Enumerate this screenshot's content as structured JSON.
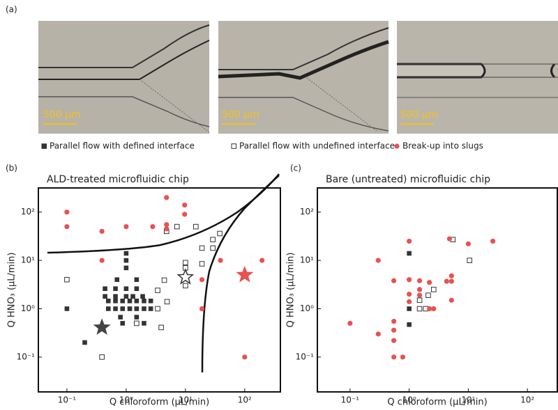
{
  "figure": {
    "panel_labels": [
      "(a)",
      "(b)",
      "(c)"
    ],
    "scale_bars": [
      "500 μm",
      "500 μm",
      "500 μm"
    ]
  },
  "chart_data": [
    {
      "type": "scatter",
      "title": "ALD-treated microfluidic chip",
      "x_label": "Q chloroform (μL/min)",
      "y_label": "Q HNO₃ (μL/min)",
      "xscale": "log",
      "yscale": "log",
      "xlim": [
        0.033,
        400
      ],
      "ylim": [
        0.019,
        316
      ],
      "xticks": [
        {
          "value": 0.1,
          "label": "10⁻¹"
        },
        {
          "value": 1,
          "label": "10⁰"
        },
        {
          "value": 10,
          "label": "10¹"
        },
        {
          "value": 100,
          "label": "10²"
        }
      ],
      "yticks": [
        {
          "value": 0.1,
          "label": "10⁻¹"
        },
        {
          "value": 1,
          "label": "10⁰"
        },
        {
          "value": 10,
          "label": "10¹"
        },
        {
          "value": 100,
          "label": "10²"
        }
      ],
      "series": [
        {
          "name": "Parallel flow with defined interface",
          "color": "#333333",
          "marker": "square",
          "x": [
            0.1,
            1,
            1,
            1,
            0.2,
            0.44,
            0.66,
            1,
            1.5,
            0.44,
            0.66,
            1,
            1.3,
            1.9,
            0.5,
            0.66,
            0.87,
            1.15,
            1.5,
            2,
            2.6,
            0.5,
            0.66,
            0.87,
            1.15,
            1.5,
            2,
            2.6,
            0.8,
            1.5,
            0.87,
            2,
            0.7,
            1.5
          ],
          "y": [
            1,
            14,
            10,
            7,
            0.2,
            2.6,
            2.6,
            2.6,
            2.6,
            1.8,
            1.8,
            1.8,
            1.8,
            1.8,
            1.45,
            1.45,
            1.45,
            1.45,
            1.45,
            1.45,
            1.45,
            1,
            1,
            1,
            1,
            1,
            1,
            1,
            0.67,
            0.67,
            0.5,
            0.5,
            4,
            4
          ]
        },
        {
          "name": "Parallel flow with undefined interface",
          "color": "#333333",
          "marker": "square-open",
          "x": [
            0.1,
            0.39,
            4.8,
            7.2,
            15,
            10,
            10,
            19,
            29,
            38,
            29,
            19,
            4.4,
            3.4,
            4.9,
            3.4,
            1.5,
            3.9,
            10
          ],
          "y": [
            4,
            0.1,
            40,
            50,
            50,
            9,
            7,
            18,
            27,
            36,
            18,
            8.5,
            3.9,
            2.4,
            1.4,
            1,
            0.5,
            0.41,
            3
          ]
        },
        {
          "name": "Break-up into slugs",
          "color": "#e8524f",
          "marker": "circle",
          "x": [
            0.1,
            0.1,
            0.39,
            1,
            2.8,
            4.8,
            4.8,
            4.8,
            9.7,
            9.7,
            0.39,
            19,
            39,
            196,
            19,
            100
          ],
          "y": [
            100,
            50,
            40,
            50,
            50,
            200,
            55,
            45,
            140,
            90,
            10,
            4,
            10,
            10,
            1,
            0.1
          ]
        }
      ],
      "stars": [
        {
          "x": 0.39,
          "y": 0.41,
          "color": "#444444",
          "filled": true
        },
        {
          "x": 10,
          "y": 4.5,
          "color": "#333333",
          "filled": false
        },
        {
          "x": 100,
          "y": 5,
          "color": "#e8524f",
          "filled": true
        }
      ]
    },
    {
      "type": "scatter",
      "title": "Bare (untreated) microfluidic chip",
      "x_label": "Q chloroform (μL/min)",
      "y_label": "Q HNO₃ (μL/min)",
      "xscale": "log",
      "yscale": "log",
      "xlim": [
        0.028,
        320
      ],
      "ylim": [
        0.019,
        316
      ],
      "xticks": [
        {
          "value": 0.1,
          "label": "10⁻¹"
        },
        {
          "value": 1,
          "label": "10⁰"
        },
        {
          "value": 10,
          "label": "10¹"
        },
        {
          "value": 100,
          "label": "10²"
        }
      ],
      "yticks": [
        {
          "value": 0.1,
          "label": "10⁻¹"
        },
        {
          "value": 1,
          "label": "10⁰"
        },
        {
          "value": 10,
          "label": "10¹"
        },
        {
          "value": 100,
          "label": "10²"
        }
      ],
      "series": [
        {
          "color": "#333333",
          "marker": "square",
          "x": [
            1,
            1,
            1
          ],
          "y": [
            14,
            1,
            0.47
          ]
        },
        {
          "color": "#333333",
          "marker": "square-open",
          "x": [
            1.5,
            1.9,
            2.6,
            2.1,
            5.5,
            10.5,
            1.5
          ],
          "y": [
            1.5,
            1,
            2.5,
            1.9,
            27,
            10,
            1
          ]
        },
        {
          "color": "#e8524f",
          "marker": "circle",
          "x": [
            0.1,
            0.3,
            0.3,
            0.55,
            0.55,
            0.55,
            0.55,
            0.78,
            0.55,
            1,
            1,
            1,
            1,
            1.5,
            1.5,
            1.5,
            2.2,
            2.2,
            2.6,
            5.2,
            4.3,
            5.2,
            5.2,
            4.8,
            10,
            26
          ],
          "y": [
            0.5,
            10,
            0.3,
            0.36,
            0.55,
            0.22,
            0.1,
            0.1,
            3.8,
            25,
            4,
            2,
            1.4,
            2.5,
            1.9,
            3.8,
            1,
            3.5,
            1,
            3.7,
            3.7,
            4.8,
            1.5,
            28,
            22,
            25
          ]
        }
      ]
    }
  ]
}
